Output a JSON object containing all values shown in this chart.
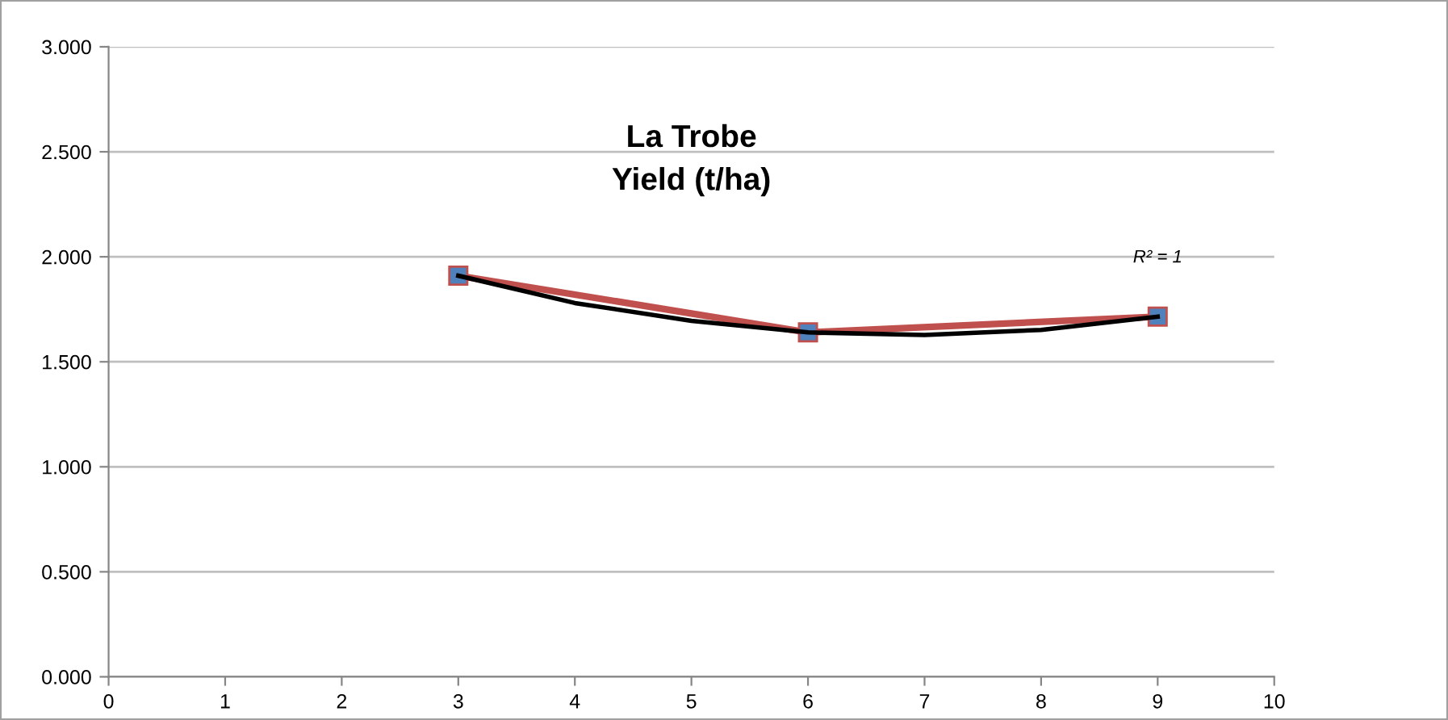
{
  "chart_data": {
    "type": "line",
    "title": "La Trobe\nYield (t/ha)",
    "series": [
      {
        "color": "#c0504d",
        "marker": "square",
        "x": [
          3,
          6,
          9
        ],
        "values": [
          1.91,
          1.64,
          1.715
        ]
      },
      {
        "color": "#000000",
        "marker": "none",
        "x": [
          3,
          4,
          5,
          6,
          7,
          8,
          9
        ],
        "values": [
          1.91,
          1.78,
          1.695,
          1.64,
          1.628,
          1.652,
          1.715
        ]
      }
    ],
    "annotations": [
      "R² = 1"
    ],
    "xlim": [
      0,
      10
    ],
    "xticks": [
      0,
      1,
      2,
      3,
      4,
      5,
      6,
      7,
      8,
      9,
      10
    ],
    "ylim": [
      0,
      3
    ],
    "yticks": [
      {
        "value": 0,
        "label": "0.000"
      },
      {
        "value": 0.5,
        "label": "0.500"
      },
      {
        "value": 1,
        "label": "1.000"
      },
      {
        "value": 1.5,
        "label": "1.500"
      },
      {
        "value": 2,
        "label": "2.000"
      },
      {
        "value": 2.5,
        "label": "2.500"
      },
      {
        "value": 3,
        "label": "3.000"
      }
    ],
    "grid": "y",
    "legend": false
  }
}
